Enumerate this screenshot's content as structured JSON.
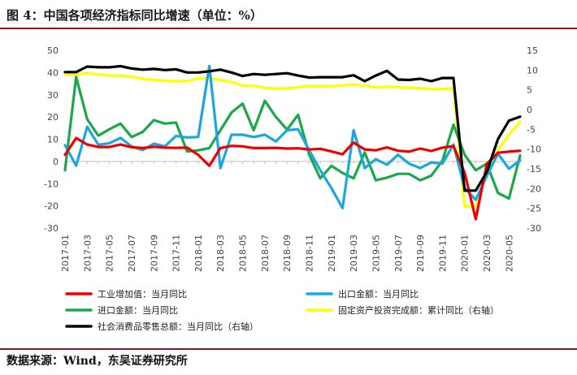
{
  "figure": {
    "title": "图 4：中国各项经济指标同比增速（单位：%）",
    "source": "数据来源：Wind，东吴证券研究所"
  },
  "chart_data": {
    "type": "line",
    "title": "图 4：中国各项经济指标同比增速（单位：%）",
    "x": [
      "2017-01",
      "2017-02",
      "2017-03",
      "2017-04",
      "2017-05",
      "2017-06",
      "2017-07",
      "2017-08",
      "2017-09",
      "2017-10",
      "2017-11",
      "2017-12",
      "2018-01",
      "2018-02",
      "2018-03",
      "2018-04",
      "2018-05",
      "2018-06",
      "2018-07",
      "2018-08",
      "2018-09",
      "2018-10",
      "2018-11",
      "2018-12",
      "2019-01",
      "2019-02",
      "2019-03",
      "2019-04",
      "2019-05",
      "2019-06",
      "2019-07",
      "2019-08",
      "2019-09",
      "2019-10",
      "2019-11",
      "2019-12",
      "2020-01",
      "2020-02",
      "2020-03",
      "2020-04",
      "2020-05",
      "2020-06"
    ],
    "x_tick_labels": [
      "2017-01",
      "2017-03",
      "2017-05",
      "2017-07",
      "2017-09",
      "2017-11",
      "2018-01",
      "2018-03",
      "2018-05",
      "2018-07",
      "2018-09",
      "2018-11",
      "2019-01",
      "2019-03",
      "2019-05",
      "2019-07",
      "2019-09",
      "2019-11",
      "2020-01",
      "2020-03",
      "2020-05"
    ],
    "y_left": {
      "min": -30,
      "max": 50,
      "ticks": [
        "-30",
        "-20",
        "-10",
        "0",
        "10",
        "20",
        "30",
        "40",
        "50"
      ]
    },
    "y_right": {
      "min": -30,
      "max": 15,
      "ticks": [
        "-30",
        "-25",
        "-20",
        "-15",
        "-10",
        "-5",
        "0",
        "5",
        "10",
        "15"
      ]
    },
    "grid": false,
    "legend_position": "bottom",
    "series": [
      {
        "name": "工业增加值：当月同比",
        "axis": "left",
        "color": "#ee0000",
        "values": [
          3.0,
          10.5,
          7.6,
          6.5,
          6.5,
          7.6,
          6.4,
          6.0,
          6.6,
          6.2,
          6.1,
          6.2,
          3.0,
          -2.0,
          6.0,
          7.0,
          6.8,
          6.0,
          6.0,
          6.1,
          5.8,
          5.9,
          5.4,
          5.7,
          4.5,
          3.2,
          8.5,
          5.4,
          5.0,
          6.3,
          4.8,
          4.4,
          5.8,
          4.7,
          6.2,
          6.9,
          -5.0,
          -26.0,
          -1.1,
          3.9,
          4.4,
          4.8
        ]
      },
      {
        "name": "出口金额：当月同比",
        "axis": "left",
        "color": "#1aa7e0",
        "values": [
          7.3,
          -1.9,
          15.6,
          7.5,
          8.2,
          10.6,
          6.7,
          5.1,
          8.0,
          6.8,
          11.5,
          10.8,
          11.0,
          43.0,
          -3.0,
          12.0,
          12.0,
          11.0,
          12.0,
          9.0,
          14.0,
          14.5,
          5.0,
          -4.0,
          -12.0,
          -21.0,
          14.0,
          -3.0,
          1.0,
          -1.5,
          3.0,
          -1.0,
          -3.0,
          -0.5,
          -1.0,
          7.6,
          -12.0,
          -17.2,
          -6.6,
          3.5,
          -3.3,
          0.5
        ]
      },
      {
        "name": "进口金额：当月同比",
        "axis": "left",
        "color": "#1aa84a",
        "values": [
          -4.0,
          38.0,
          19.0,
          11.6,
          14.5,
          17.0,
          11.0,
          13.3,
          18.6,
          17.0,
          17.5,
          4.5,
          5.0,
          6.0,
          14.0,
          22.0,
          26.0,
          14.0,
          27.3,
          20.0,
          14.3,
          21.0,
          3.0,
          -7.6,
          -2.0,
          -5.2,
          -7.6,
          4.0,
          -8.5,
          -7.3,
          -5.6,
          -5.6,
          -8.5,
          -6.4,
          0.3,
          16.5,
          3.0,
          -4.0,
          -1.0,
          -14.2,
          -16.7,
          2.7
        ]
      },
      {
        "name": "固定资产投资完成额：累计同比（右轴）",
        "axis": "right",
        "color": "#ffff00",
        "values": [
          8.9,
          8.9,
          9.2,
          8.9,
          8.6,
          8.6,
          8.3,
          7.8,
          7.5,
          7.3,
          7.2,
          7.2,
          7.9,
          7.9,
          7.5,
          7.0,
          6.1,
          6.0,
          5.5,
          5.3,
          5.4,
          5.7,
          5.9,
          5.9,
          5.9,
          6.1,
          6.3,
          6.1,
          5.6,
          5.8,
          5.7,
          5.5,
          5.4,
          5.2,
          5.2,
          5.4,
          -24.5,
          -24.5,
          -16.1,
          -10.3,
          -6.3,
          -3.1
        ]
      },
      {
        "name": "社会消费品零售总额：当月同比（右轴）",
        "axis": "right",
        "color": "#000000",
        "values": [
          9.5,
          9.5,
          10.9,
          10.7,
          10.7,
          11.0,
          10.4,
          10.1,
          10.3,
          10.0,
          10.2,
          9.4,
          9.4,
          9.7,
          10.1,
          9.4,
          8.5,
          9.0,
          8.8,
          9.0,
          9.2,
          8.6,
          8.1,
          8.2,
          8.2,
          8.2,
          8.7,
          7.2,
          8.6,
          9.8,
          7.6,
          7.5,
          7.8,
          7.2,
          8.0,
          8.0,
          -20.5,
          -20.5,
          -15.8,
          -7.5,
          -2.8,
          -1.8
        ]
      }
    ]
  }
}
